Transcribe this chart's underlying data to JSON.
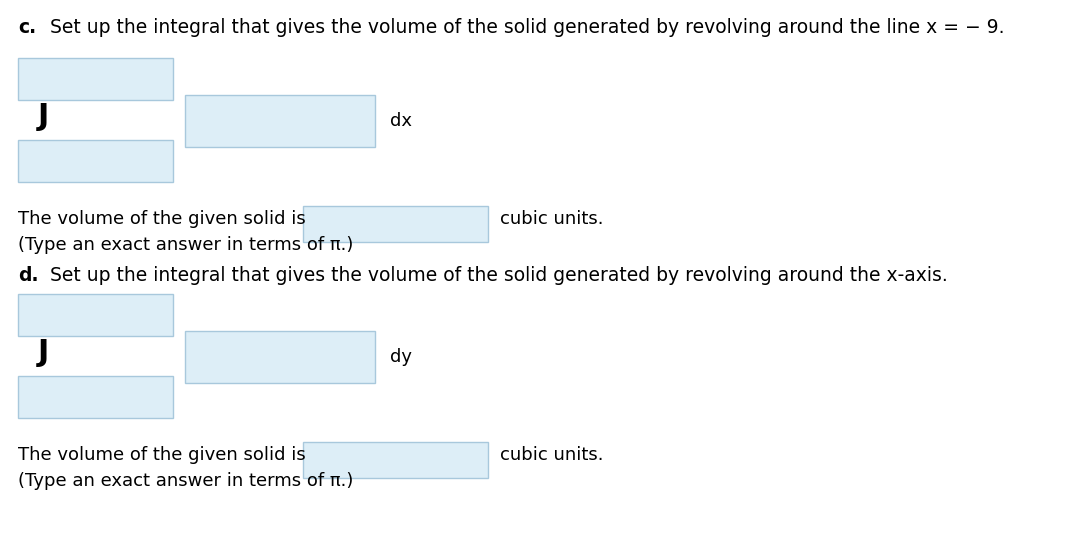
{
  "title_c": "c.",
  "title_c_text": "Set up the integral that gives the volume of the solid generated by revolving around the line x = − 9.",
  "title_d": "d.",
  "title_d_text": "Set up the integral that gives the volume of the solid generated by revolving around the x-axis.",
  "volume_text": "The volume of the given solid is",
  "cubic_text": "cubic units.",
  "type_text": "(Type an exact answer in terms of π.)",
  "dx_label": "dx",
  "dy_label": "dy",
  "bg_color": "#ffffff",
  "box_face": "#ddeef7",
  "box_edge": "#a8c8dc",
  "font_size_title": 13.5,
  "font_size_body": 13,
  "font_size_J": 22
}
